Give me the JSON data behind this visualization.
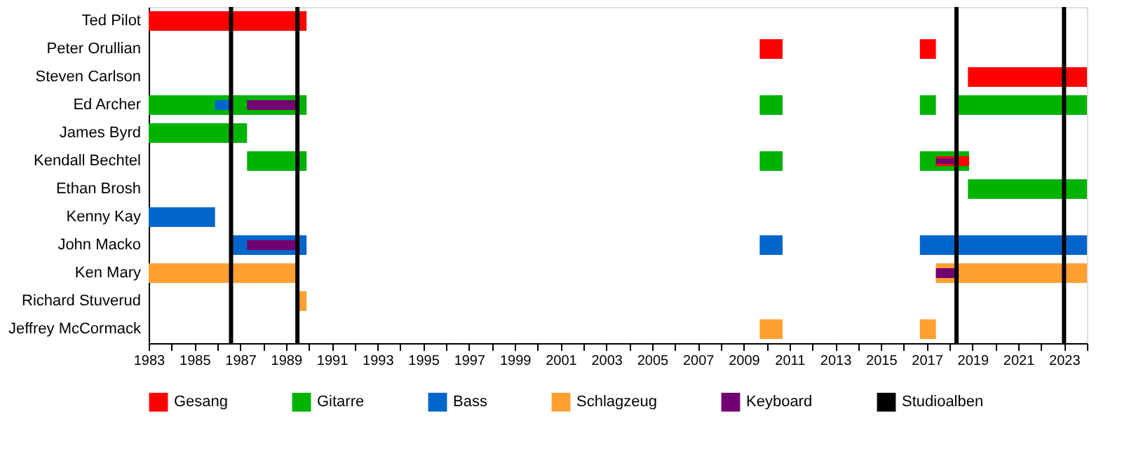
{
  "chart_data": {
    "type": "bar",
    "orientation": "horizontal",
    "categories": [
      "Ted Pilot",
      "Peter Orullian",
      "Steven Carlson",
      "Ed Archer",
      "James Byrd",
      "Kendall Bechtel",
      "Ethan Brosh",
      "Kenny Kay",
      "John Macko",
      "Ken Mary",
      "Richard Stuverud",
      "Jeffrey McCormack"
    ],
    "series": [
      {
        "name": "Gesang",
        "color": "#ff0000",
        "base": [
          1983,
          2009.7,
          2018.8,
          null,
          null,
          null,
          null,
          null,
          null,
          null,
          null,
          null
        ],
        "values": [
          6.9,
          1.0,
          5.2,
          null,
          null,
          null,
          null,
          null,
          null,
          null,
          null,
          null
        ]
      },
      {
        "name": "Gitarre",
        "color": "#00b300",
        "base": [
          null,
          null,
          null,
          1983,
          1983,
          1987.3,
          2018.8,
          null,
          null,
          null,
          null,
          null
        ],
        "values": [
          null,
          null,
          null,
          6.9,
          4.3,
          2.6,
          5.2,
          null,
          null,
          null,
          null,
          null
        ]
      },
      {
        "color": "#00b300",
        "base": [
          null,
          null,
          null,
          2009.7,
          null,
          2009.7,
          null,
          null,
          null,
          null,
          null,
          null
        ],
        "values": [
          null,
          null,
          null,
          1.0,
          null,
          1.0,
          null,
          null,
          null,
          null,
          null,
          null
        ]
      },
      {
        "color": "#00b300",
        "base": [
          null,
          null,
          null,
          2016.7,
          null,
          2016.7,
          null,
          null,
          null,
          null,
          null,
          null
        ],
        "values": [
          null,
          null,
          null,
          0.7,
          null,
          2.15,
          null,
          null,
          null,
          null,
          null,
          null
        ]
      },
      {
        "color": "#00b300",
        "base": [
          null,
          null,
          null,
          2018.3,
          null,
          null,
          null,
          null,
          null,
          null,
          null,
          null
        ],
        "values": [
          null,
          null,
          null,
          5.7,
          null,
          null,
          null,
          null,
          null,
          null,
          null,
          null
        ]
      },
      {
        "color": "#ff0000",
        "base": [
          null,
          2016.7,
          null,
          null,
          null,
          2017.4,
          null,
          null,
          null,
          null,
          null,
          null
        ],
        "values": [
          null,
          0.7,
          null,
          null,
          null,
          1.45,
          null,
          null,
          null,
          null,
          null,
          null
        ]
      },
      {
        "name": "Bass",
        "color": "#0066cc",
        "base": [
          null,
          null,
          null,
          1985.9,
          null,
          null,
          null,
          1983,
          1986.6,
          null,
          null,
          null
        ],
        "values": [
          null,
          null,
          null,
          0.7,
          null,
          null,
          null,
          2.9,
          3.3,
          null,
          null,
          null
        ]
      },
      {
        "color": "#0066cc",
        "base": [
          null,
          null,
          null,
          null,
          null,
          null,
          null,
          null,
          2009.7,
          null,
          null,
          null
        ],
        "values": [
          null,
          null,
          null,
          null,
          null,
          null,
          null,
          null,
          1.0,
          null,
          null,
          null
        ]
      },
      {
        "color": "#0066cc",
        "base": [
          null,
          null,
          null,
          null,
          null,
          null,
          null,
          null,
          2016.7,
          null,
          null,
          null
        ],
        "values": [
          null,
          null,
          null,
          null,
          null,
          null,
          null,
          null,
          7.3,
          null,
          null,
          null
        ]
      },
      {
        "name": "Schlagzeug",
        "color": "#ffa031",
        "base": [
          null,
          null,
          null,
          null,
          null,
          null,
          null,
          null,
          null,
          1983,
          1989.5,
          2009.7
        ],
        "values": [
          null,
          null,
          null,
          null,
          null,
          null,
          null,
          null,
          null,
          6.55,
          0.4,
          1.0
        ]
      },
      {
        "color": "#ffa031",
        "base": [
          null,
          null,
          null,
          null,
          null,
          null,
          null,
          null,
          null,
          2017.4,
          null,
          2016.7
        ],
        "values": [
          null,
          null,
          null,
          null,
          null,
          null,
          null,
          null,
          null,
          6.6,
          null,
          0.7
        ]
      },
      {
        "name": "Keyboard",
        "color": "#730073",
        "base": [
          null,
          null,
          null,
          1987.3,
          null,
          2017.4,
          null,
          null,
          1987.3,
          2017.4,
          null,
          null
        ],
        "values": [
          null,
          null,
          null,
          2.25,
          null,
          1.0,
          null,
          null,
          2.25,
          1.0,
          null,
          null
        ]
      }
    ],
    "ref_lines": [
      {
        "axis": "x",
        "value": 1986.6,
        "label": "Studioalben",
        "color": "#000000"
      },
      {
        "axis": "x",
        "value": 1989.5,
        "color": "#000000"
      },
      {
        "axis": "x",
        "value": 2018.3,
        "color": "#000000"
      },
      {
        "axis": "x",
        "value": 2023.0,
        "color": "#000000"
      }
    ],
    "xlim": [
      1983,
      2024
    ],
    "xticks": [
      1983,
      {
        "value": 1984,
        "label": null
      },
      1985,
      {
        "value": 1986,
        "label": null
      },
      1987,
      {
        "value": 1988,
        "label": null
      },
      1989,
      {
        "value": 1990,
        "label": null
      },
      1991,
      {
        "value": 1992,
        "label": null
      },
      1993,
      {
        "value": 1994,
        "label": null
      },
      1995,
      {
        "value": 1996,
        "label": null
      },
      1997,
      {
        "value": 1998,
        "label": null
      },
      1999,
      {
        "value": 2000,
        "label": null
      },
      2001,
      {
        "value": 2002,
        "label": null
      },
      2003,
      {
        "value": 2004,
        "label": null
      },
      2005,
      {
        "value": 2006,
        "label": null
      },
      2007,
      {
        "value": 2008,
        "label": null
      },
      2009,
      {
        "value": 2010,
        "label": null
      },
      2011,
      {
        "value": 2012,
        "label": null
      },
      2013,
      {
        "value": 2014,
        "label": null
      },
      2015,
      {
        "value": 2016,
        "label": null
      },
      2017,
      {
        "value": 2018,
        "label": null
      },
      2019,
      {
        "value": 2020,
        "label": null
      },
      2021,
      {
        "value": 2022,
        "label": null
      },
      2023,
      {
        "value": 2024,
        "label": null
      }
    ],
    "grid": false,
    "legend": "bottom"
  }
}
